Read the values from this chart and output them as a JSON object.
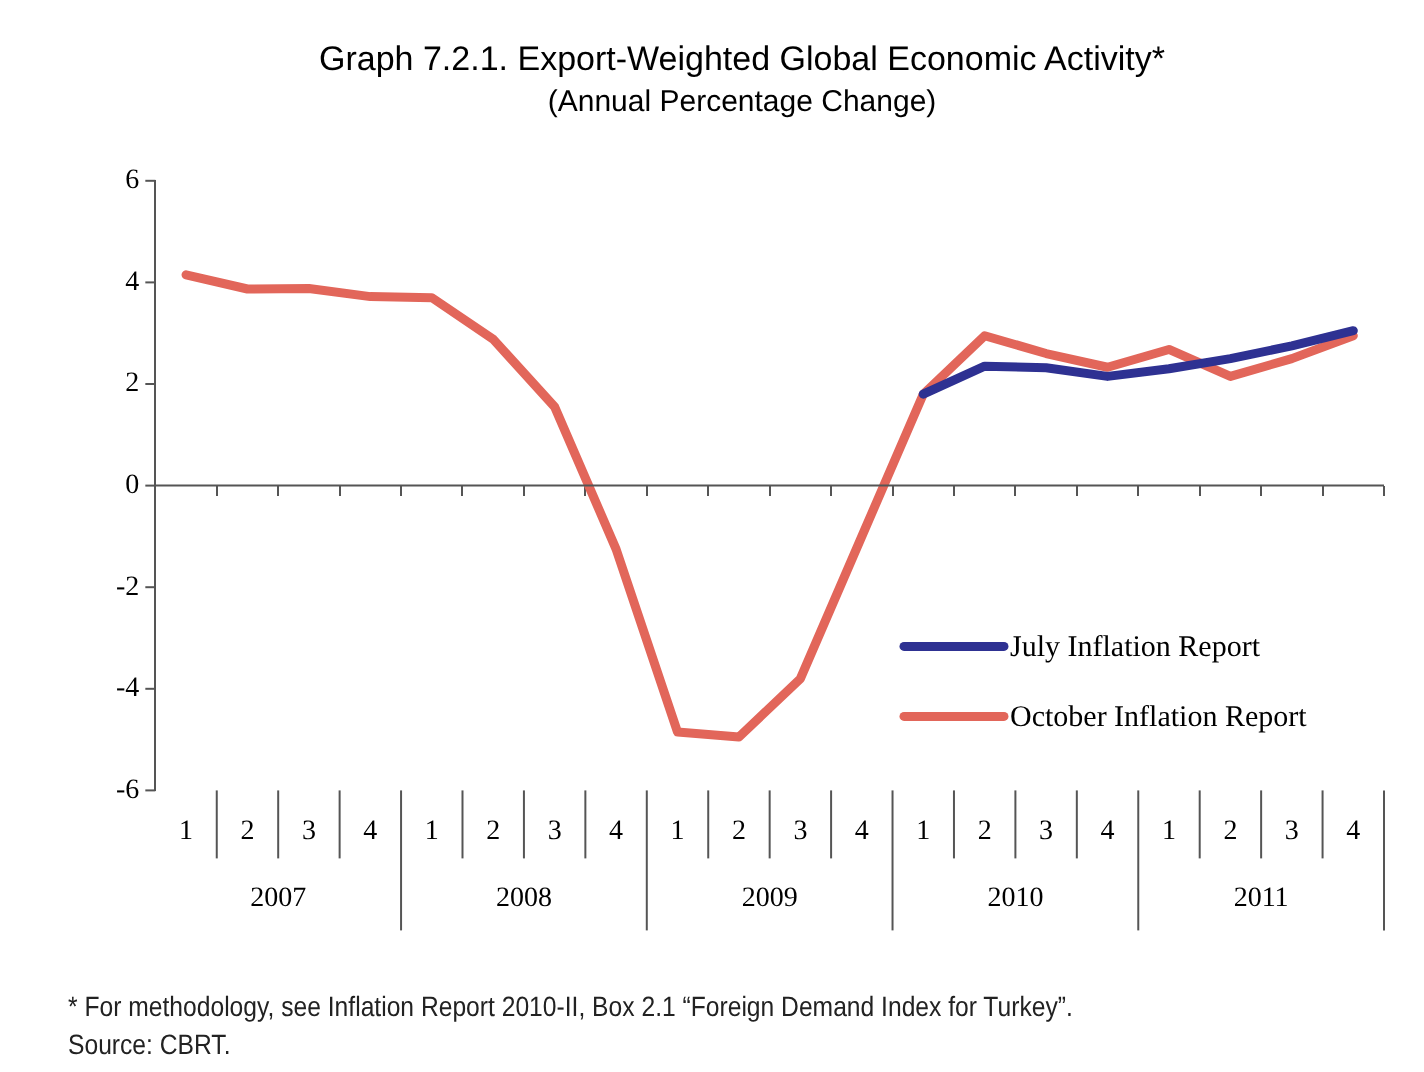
{
  "chart_data": {
    "type": "line",
    "title": "Graph 7.2.1. Export-Weighted Global Economic Activity*",
    "subtitle": "(Annual Percentage Change)",
    "categories": [
      "1",
      "2",
      "3",
      "4",
      "1",
      "2",
      "3",
      "4",
      "1",
      "2",
      "3",
      "4",
      "1",
      "2",
      "3",
      "4",
      "1",
      "2",
      "3",
      "4"
    ],
    "series": [
      {
        "name": "July Inflation Report",
        "color": "#2e3192",
        "values": [
          null,
          null,
          null,
          null,
          null,
          null,
          null,
          null,
          null,
          null,
          null,
          null,
          1.8,
          2.35,
          2.32,
          2.15,
          2.3,
          2.5,
          2.75,
          3.05
        ]
      },
      {
        "name": "October Inflation Report",
        "color": "#e2665a",
        "values": [
          4.15,
          3.87,
          3.88,
          3.72,
          3.7,
          2.88,
          1.55,
          -1.25,
          -4.85,
          -4.95,
          -3.8,
          -1.0,
          1.8,
          2.95,
          2.6,
          2.33,
          2.68,
          2.15,
          2.5,
          2.95
        ]
      }
    ],
    "ylim": [
      -6,
      6
    ],
    "yticks": [
      -6,
      -4,
      -2,
      0,
      2,
      4,
      6
    ],
    "grid": false,
    "ref_lines": [
      {
        "axis": "y",
        "value": 0,
        "color": "#555555"
      }
    ],
    "legend": "bottom right",
    "line_style": "solid",
    "marker": "none",
    "annotations": [
      "2007",
      "2008",
      "2009",
      "2010",
      "2011",
      "* For methodology, see Inflation Report 2010-II, Box 2.1 “Foreign Demand Index for Turkey”.",
      "Source: CBRT."
    ]
  }
}
